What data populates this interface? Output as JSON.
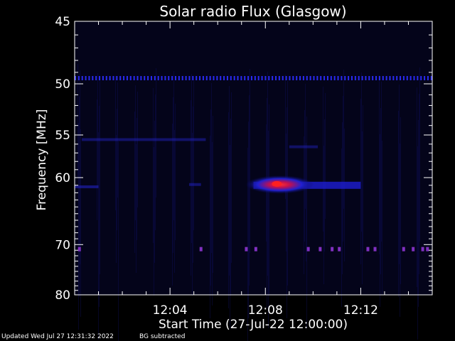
{
  "chart_data": {
    "type": "heatmap",
    "title": "Solar radio Flux (Glasgow)",
    "xlabel": "Start Time (27-Jul-22 12:00:00)",
    "ylabel": "Frequency [MHz]",
    "x_range_minutes": [
      0,
      15
    ],
    "y_range_mhz": [
      45,
      80
    ],
    "y_ticks": [
      45,
      50,
      55,
      60,
      70,
      80
    ],
    "x_ticks": [
      {
        "minute": 4,
        "label": "12:04"
      },
      {
        "minute": 8,
        "label": "12:08"
      },
      {
        "minute": 12,
        "label": "12:12"
      }
    ],
    "background_color": "#04041a",
    "features": [
      {
        "kind": "band",
        "freq_mhz": 49.5,
        "t_start": 0.0,
        "t_end": 15.0,
        "intensity": 0.55,
        "dashed": true
      },
      {
        "kind": "band",
        "freq_mhz": 55.5,
        "t_start": 0.3,
        "t_end": 5.5,
        "intensity": 0.3,
        "dashed": false
      },
      {
        "kind": "band",
        "freq_mhz": 61.2,
        "t_start": 0.0,
        "t_end": 1.0,
        "intensity": 0.5,
        "dashed": false
      },
      {
        "kind": "band",
        "freq_mhz": 60.9,
        "t_start": 4.8,
        "t_end": 5.3,
        "intensity": 0.35,
        "dashed": false
      },
      {
        "kind": "burst",
        "freq_mhz": 61.0,
        "t_start": 7.5,
        "t_end": 12.0,
        "t_peak": 8.6,
        "intensity": 1.0
      },
      {
        "kind": "band",
        "freq_mhz": 56.3,
        "t_start": 9.0,
        "t_end": 10.2,
        "intensity": 0.25,
        "dashed": false
      },
      {
        "kind": "spots",
        "freq_mhz": 70.8,
        "times": [
          0.2,
          5.3,
          7.2,
          7.6,
          9.8,
          10.3,
          10.8,
          11.1,
          12.3,
          12.6,
          13.8,
          14.2,
          14.6,
          14.8
        ],
        "intensity": 0.45
      }
    ]
  },
  "footer": {
    "updated": "Updated Wed Jul 27 12:31:32 2022",
    "bg_note": "BG subtracted"
  }
}
